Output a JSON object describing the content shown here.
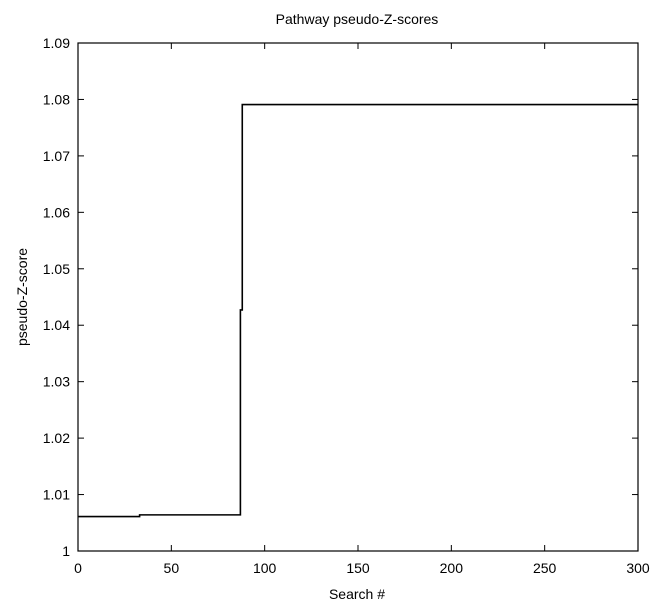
{
  "chart_data": {
    "type": "line",
    "title": "Pathway pseudo-Z-scores",
    "xlabel": "Search #",
    "ylabel": "pseudo-Z-score",
    "xlim": [
      0,
      300
    ],
    "ylim": [
      1.0,
      1.09
    ],
    "xticks": [
      0,
      50,
      100,
      150,
      200,
      250,
      300
    ],
    "xtick_labels": [
      "0",
      "50",
      "100",
      "150",
      "200",
      "250",
      "300"
    ],
    "yticks": [
      1.0,
      1.01,
      1.02,
      1.03,
      1.04,
      1.05,
      1.06,
      1.07,
      1.08,
      1.09
    ],
    "ytick_labels": [
      "1",
      "1.01",
      "1.02",
      "1.03",
      "1.04",
      "1.05",
      "1.06",
      "1.07",
      "1.08",
      "1.09"
    ],
    "grid": false,
    "legend": "none",
    "series": [
      {
        "color": "#000000",
        "x": [
          0,
          33,
          33,
          87,
          87,
          88,
          88,
          300
        ],
        "y": [
          1.0061,
          1.0061,
          1.0064,
          1.0064,
          1.0427,
          1.0427,
          1.0791,
          1.0791
        ]
      }
    ]
  }
}
